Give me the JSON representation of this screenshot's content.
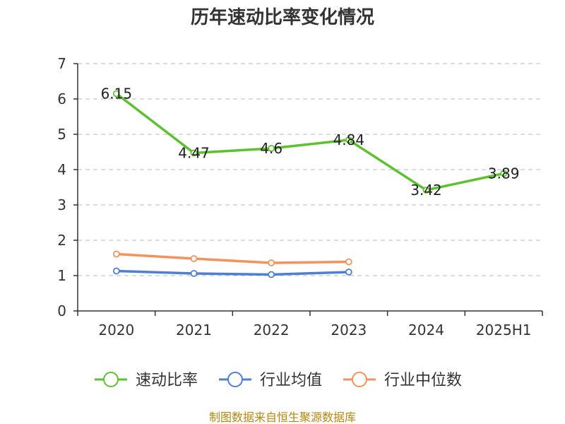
{
  "chart_data": {
    "type": "line",
    "title": "历年速动比率变化情况",
    "categories": [
      "2020",
      "2021",
      "2022",
      "2023",
      "2024",
      "2025H1"
    ],
    "ylim": [
      0,
      7
    ],
    "yticks": [
      "0",
      "1",
      "2",
      "3",
      "4",
      "5",
      "6",
      "7"
    ],
    "grid": true,
    "legend_position": "bottom",
    "series": [
      {
        "name": "速动比率",
        "color": "#5cc22e",
        "values": [
          6.15,
          4.47,
          4.6,
          4.84,
          3.42,
          3.89
        ],
        "labels": [
          "6.15",
          "4.47",
          "4.6",
          "4.84",
          "3.42",
          "3.89"
        ]
      },
      {
        "name": "行业均值",
        "color": "#4e7fd8",
        "values": [
          1.13,
          1.06,
          1.03,
          1.1,
          null,
          null
        ]
      },
      {
        "name": "行业中位数",
        "color": "#f5925b",
        "values": [
          1.61,
          1.48,
          1.36,
          1.39,
          null,
          null
        ]
      }
    ],
    "source": "制图数据来自恒生聚源数据库"
  }
}
